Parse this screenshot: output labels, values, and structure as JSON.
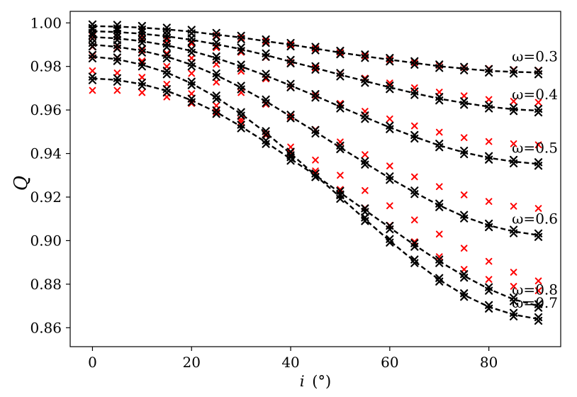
{
  "chart_data": {
    "type": "line",
    "xlabel": "i (°)",
    "xlabel_var": "i",
    "xlabel_unit": "(°)",
    "ylabel": "Q",
    "xlim": [
      -4.5,
      94.5
    ],
    "ylim": [
      0.8513,
      1.0053
    ],
    "xticks": [
      0,
      20,
      40,
      60,
      80
    ],
    "yticks": [
      0.86,
      0.88,
      0.9,
      0.92,
      0.94,
      0.96,
      0.98,
      1.0
    ],
    "ytick_labels": [
      "0.86",
      "0.88",
      "0.90",
      "0.92",
      "0.94",
      "0.96",
      "0.98",
      "1.00"
    ],
    "grid": false,
    "line_color": "#000000",
    "sim_marker_color": "#000000",
    "ref_marker_color": "#ff0000",
    "x": [
      0,
      5,
      10,
      15,
      20,
      25,
      30,
      35,
      40,
      45,
      50,
      55,
      60,
      65,
      70,
      75,
      80,
      85,
      90
    ],
    "series": [
      {
        "name": "ω=0.3",
        "label": "ω=0.3",
        "values": [
          0.9985,
          0.9983,
          0.9978,
          0.997,
          0.996,
          0.9946,
          0.9933,
          0.9916,
          0.99,
          0.9882,
          0.9864,
          0.9847,
          0.9831,
          0.9816,
          0.9801,
          0.979,
          0.978,
          0.9775,
          0.9772
        ],
        "ref": [
          0.997,
          0.997,
          0.9968,
          0.9962,
          0.9952,
          0.9942,
          0.993,
          0.9915,
          0.99,
          0.9883,
          0.9865,
          0.9849,
          0.9833,
          0.9818,
          0.9805,
          0.9795,
          0.979,
          0.9785,
          0.9782
        ]
      },
      {
        "name": "ω=0.4",
        "label": "ω=0.4",
        "values": [
          0.9962,
          0.9958,
          0.995,
          0.9938,
          0.9922,
          0.9902,
          0.9879,
          0.9852,
          0.9822,
          0.9793,
          0.9762,
          0.9733,
          0.9704,
          0.9677,
          0.9652,
          0.9632,
          0.9615,
          0.9603,
          0.9597
        ],
        "ref": [
          0.994,
          0.9936,
          0.993,
          0.992,
          0.9905,
          0.9886,
          0.9865,
          0.9842,
          0.9818,
          0.9793,
          0.9768,
          0.9746,
          0.9724,
          0.9702,
          0.9682,
          0.9665,
          0.9648,
          0.964,
          0.9635
        ]
      },
      {
        "name": "ω=0.5",
        "label": "ω=0.5",
        "values": [
          0.9935,
          0.9929,
          0.9916,
          0.9897,
          0.9871,
          0.9838,
          0.98,
          0.9758,
          0.9712,
          0.9665,
          0.9615,
          0.9567,
          0.952,
          0.9477,
          0.9437,
          0.9405,
          0.938,
          0.9363,
          0.9352
        ],
        "ref": [
          0.989,
          0.9885,
          0.9875,
          0.986,
          0.9838,
          0.981,
          0.9778,
          0.9743,
          0.9706,
          0.9668,
          0.963,
          0.9594,
          0.9559,
          0.9527,
          0.9498,
          0.9473,
          0.9455,
          0.9445,
          0.944
        ]
      },
      {
        "name": "ω=0.6",
        "label": "ω=0.6",
        "values": [
          0.99,
          0.989,
          0.9872,
          0.9845,
          0.9808,
          0.976,
          0.9703,
          0.964,
          0.957,
          0.95,
          0.9428,
          0.9357,
          0.9287,
          0.9222,
          0.9162,
          0.911,
          0.907,
          0.9042,
          0.9025
        ],
        "ref": [
          0.985,
          0.984,
          0.9825,
          0.98,
          0.9768,
          0.9728,
          0.968,
          0.9626,
          0.9568,
          0.951,
          0.9453,
          0.9395,
          0.9343,
          0.9293,
          0.9248,
          0.921,
          0.918,
          0.9158,
          0.9148
        ]
      },
      {
        "name": "ω=0.7",
        "label": "ω=0.7",
        "values": [
          0.9845,
          0.9833,
          0.9808,
          0.9772,
          0.9722,
          0.9658,
          0.9582,
          0.9495,
          0.94,
          0.93,
          0.92,
          0.9098,
          0.8999,
          0.8905,
          0.882,
          0.875,
          0.8696,
          0.866,
          0.864
        ],
        "ref": [
          0.978,
          0.977,
          0.975,
          0.9718,
          0.9675,
          0.962,
          0.9556,
          0.9483,
          0.9404,
          0.932,
          0.9235,
          0.915,
          0.907,
          0.8995,
          0.8926,
          0.8868,
          0.8822,
          0.879,
          0.877
        ]
      },
      {
        "name": "ω=0.8",
        "label": "ω=0.8",
        "values": [
          0.9745,
          0.9738,
          0.9718,
          0.9688,
          0.9644,
          0.959,
          0.9524,
          0.9452,
          0.9375,
          0.93,
          0.922,
          0.914,
          0.906,
          0.898,
          0.8905,
          0.8838,
          0.8778,
          0.873,
          0.87
        ],
        "ref": [
          0.969,
          0.969,
          0.968,
          0.966,
          0.963,
          0.959,
          0.9545,
          0.949,
          0.943,
          0.937,
          0.93,
          0.923,
          0.916,
          0.9095,
          0.903,
          0.8965,
          0.8905,
          0.8855,
          0.8815
        ]
      }
    ]
  }
}
